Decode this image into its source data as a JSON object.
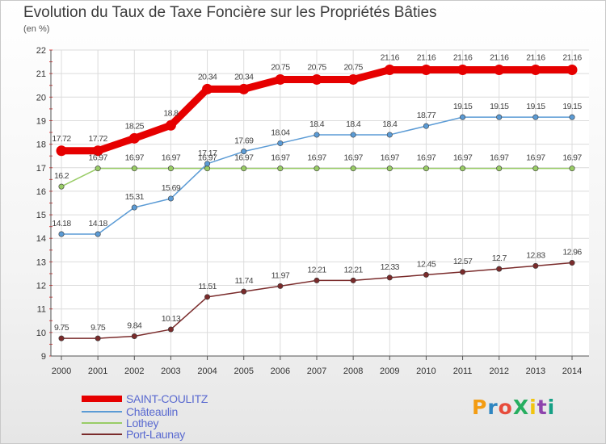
{
  "chart_data": {
    "type": "line",
    "title": "Evolution du Taux de Taxe Foncière sur les Propriétés Bâties",
    "ylabel": "(en %)",
    "xlabel": "",
    "ylim": [
      9,
      22
    ],
    "yticks": [
      "9",
      "10",
      "11",
      "12",
      "13",
      "14",
      "15",
      "16",
      "17",
      "18",
      "19",
      "20",
      "21",
      "22"
    ],
    "categories": [
      "2000",
      "2001",
      "2002",
      "2003",
      "2004",
      "2005",
      "2006",
      "2007",
      "2008",
      "2009",
      "2010",
      "2011",
      "2012",
      "2013",
      "2014"
    ],
    "series": [
      {
        "name": "SAINT-COULITZ",
        "color": "#e60000",
        "values": [
          17.72,
          17.72,
          18.25,
          18.8,
          20.34,
          20.34,
          20.75,
          20.75,
          20.75,
          21.16,
          21.16,
          21.16,
          21.16,
          21.16,
          21.16
        ],
        "labels": [
          "17.72",
          "17.72",
          "18.25",
          "18.8",
          "20.34",
          "20.34",
          "20.75",
          "20.75",
          "20.75",
          "21.16",
          "21.16",
          "21.16",
          "21.16",
          "21.16",
          "21.16"
        ]
      },
      {
        "name": "Châteaulin",
        "color": "#5b9bd5",
        "values": [
          14.18,
          14.18,
          15.31,
          15.69,
          17.17,
          17.69,
          18.04,
          18.4,
          18.4,
          18.4,
          18.77,
          19.15,
          19.15,
          19.15,
          19.15
        ],
        "labels": [
          "14.18",
          "14.18",
          "15.31",
          "15.69",
          "17.17",
          "17.69",
          "18.04",
          "18.4",
          "18.4",
          "18.4",
          "18.77",
          "19.15",
          "19.15",
          "19.15",
          "19.15"
        ]
      },
      {
        "name": "Lothey",
        "color": "#99cc66",
        "values": [
          16.2,
          16.97,
          16.97,
          16.97,
          16.97,
          16.97,
          16.97,
          16.97,
          16.97,
          16.97,
          16.97,
          16.97,
          16.97,
          16.97,
          16.97
        ],
        "labels": [
          "16.2",
          "16.97",
          "16.97",
          "16.97",
          "16.97",
          "16.97",
          "16.97",
          "16.97",
          "16.97",
          "16.97",
          "16.97",
          "16.97",
          "16.97",
          "16.97",
          "16.97"
        ]
      },
      {
        "name": "Port-Launay",
        "color": "#7a2b2b",
        "values": [
          9.75,
          9.75,
          9.84,
          10.13,
          11.51,
          11.74,
          11.97,
          12.21,
          12.21,
          12.33,
          12.45,
          12.57,
          12.7,
          12.83,
          12.96
        ],
        "labels": [
          "9.75",
          "9.75",
          "9.84",
          "10.13",
          "11.51",
          "11.74",
          "11.97",
          "12.21",
          "12.21",
          "12.33",
          "12.45",
          "12.57",
          "12.7",
          "12.83",
          "12.96"
        ]
      }
    ]
  },
  "legend": {
    "items": [
      {
        "label": "SAINT-COULITZ",
        "color": "#e60000",
        "text_color": "#5a6ad0"
      },
      {
        "label": "Châteaulin",
        "color": "#5b9bd5",
        "text_color": "#5a6ad0"
      },
      {
        "label": "Lothey",
        "color": "#99cc66",
        "text_color": "#5a6ad0"
      },
      {
        "label": "Port-Launay",
        "color": "#7a2b2b",
        "text_color": "#5a6ad0"
      }
    ]
  },
  "logo": {
    "text": "ProXiti"
  }
}
